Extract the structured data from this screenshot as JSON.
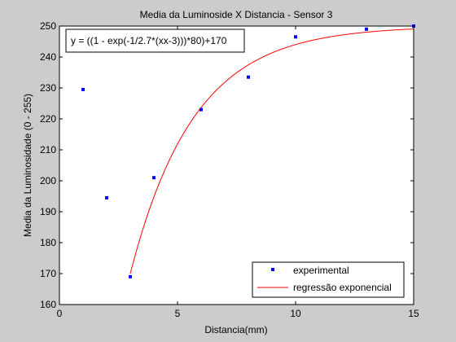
{
  "chart_data": {
    "type": "scatter",
    "title": "Media da Luminoside X Distancia - Sensor 3",
    "xlabel": "Distancia(mm)",
    "ylabel": "Media da Luminosidade (0 - 255)",
    "xlim": [
      0,
      15
    ],
    "ylim": [
      160,
      250
    ],
    "xticks": [
      0,
      5,
      10,
      15
    ],
    "yticks": [
      160,
      170,
      180,
      190,
      200,
      210,
      220,
      230,
      240,
      250
    ],
    "grid": false,
    "legend_position": "bottom-right",
    "annotation": "y = ((1 - exp(-1/2.7*(xx-3)))*80)+170",
    "series": [
      {
        "name": "experimental",
        "kind": "scatter",
        "color": "#0000ff",
        "x": [
          1,
          2,
          3,
          4,
          6,
          8,
          10,
          13,
          15
        ],
        "y": [
          229.5,
          194.5,
          169,
          201,
          223,
          233.5,
          246.5,
          249,
          250
        ]
      },
      {
        "name": "regressão exponencial",
        "kind": "line",
        "color": "#ff0000",
        "function": {
          "a": 80,
          "b": 2.7,
          "x0": 3,
          "c": 170
        },
        "domain": [
          3,
          15
        ]
      }
    ]
  }
}
